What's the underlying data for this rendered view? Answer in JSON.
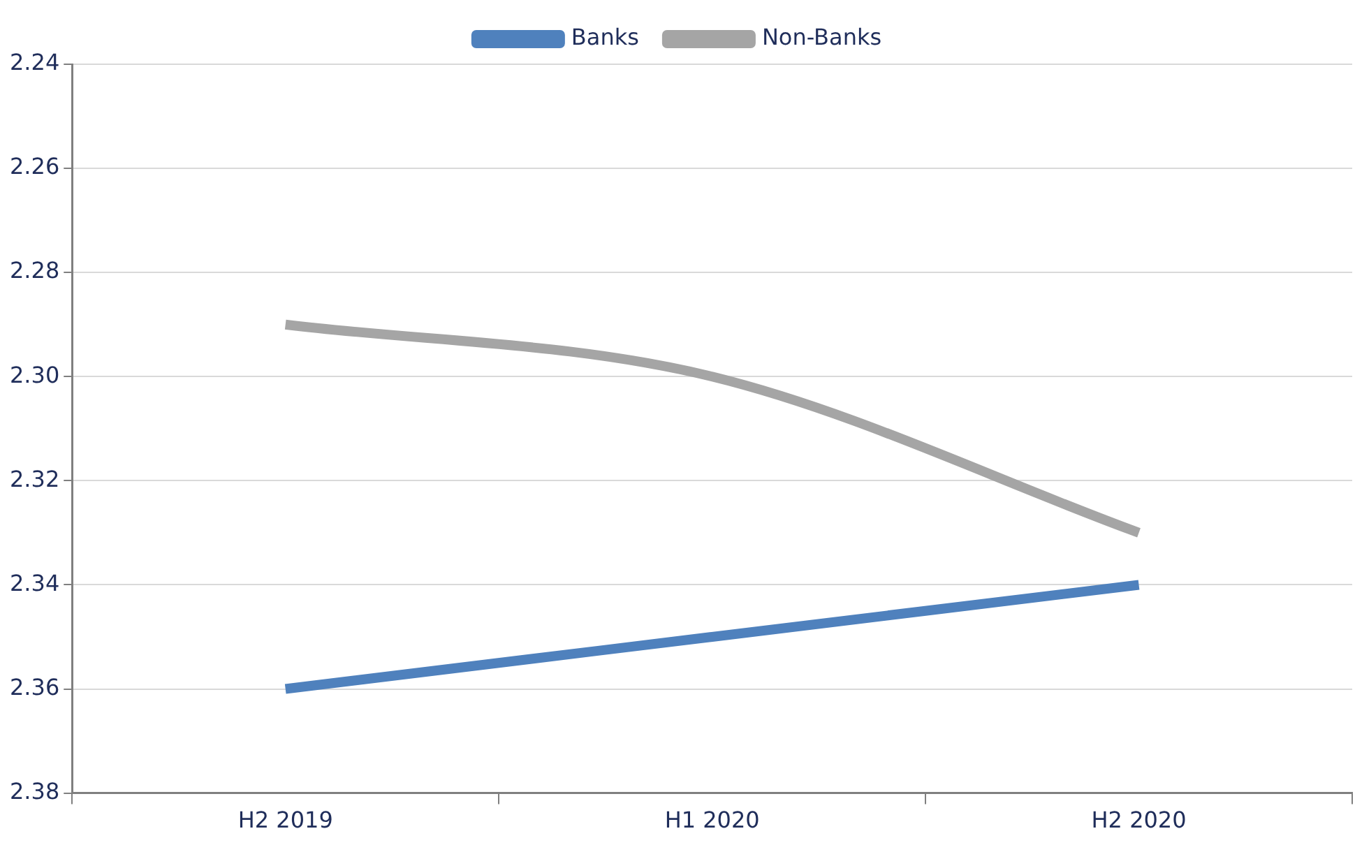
{
  "chart_data": {
    "type": "line",
    "categories": [
      "H2 2019",
      "H1 2020",
      "H2 2020"
    ],
    "series": [
      {
        "name": "Banks",
        "color": "#4f81bd",
        "values": [
          2.36,
          2.35,
          2.34
        ]
      },
      {
        "name": "Non-Banks",
        "color": "#a5a5a5",
        "values": [
          2.29,
          2.3,
          2.33
        ]
      }
    ],
    "ylim": [
      2.38,
      2.24
    ],
    "yticks": [
      2.24,
      2.26,
      2.28,
      {
        "value": 2.3,
        "label": "2.30"
      },
      2.32,
      2.34,
      2.36,
      2.38
    ],
    "grid": "y",
    "legend": "top",
    "marker": "none",
    "line_style": "solid"
  }
}
